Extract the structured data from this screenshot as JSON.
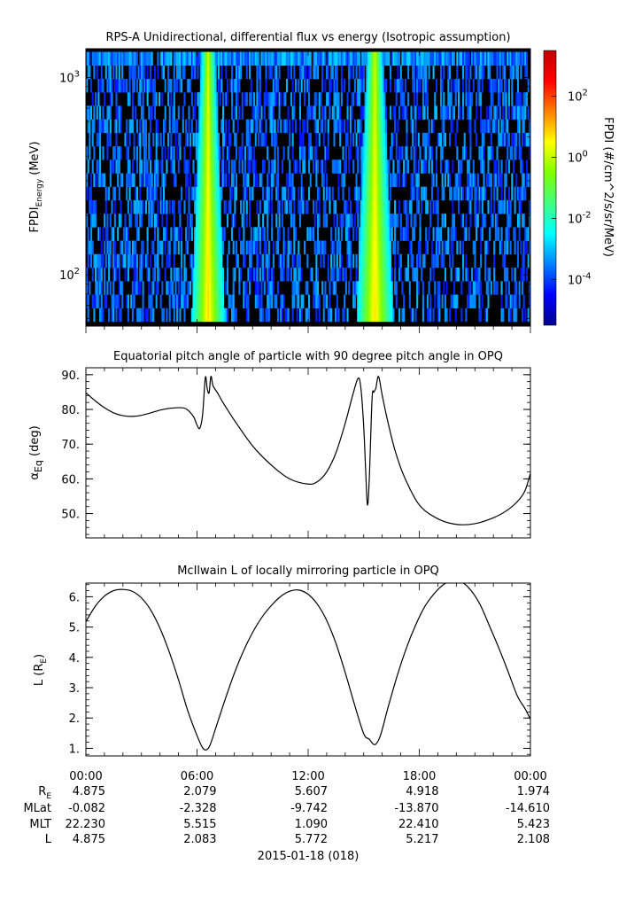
{
  "chart_data": [
    {
      "type": "heatmap",
      "title": "RPS-A Unidirectional, differential flux vs energy (Isotropic assumption)",
      "ylabel_main": "FPDI",
      "ylabel_sub": "Energy",
      "ylabel_unit": " (MeV)",
      "yscale": "log",
      "ylim": [
        55,
        1400
      ],
      "yticks": [
        {
          "value": 100,
          "base": "10",
          "exp": "2"
        },
        {
          "value": 1000,
          "base": "10",
          "exp": "3"
        }
      ],
      "xlim": [
        0,
        24
      ],
      "colorbar": {
        "label": "FPDI (#/cm^2/s/sr/MeV)",
        "scale": "log",
        "range": [
          -5.5,
          3.5
        ],
        "colors": [
          "#00008c",
          "#0000ff",
          "#0080ff",
          "#00ffff",
          "#40ff80",
          "#80ff00",
          "#ffff00",
          "#ff8000",
          "#ff0000",
          "#c00000"
        ],
        "ticks": [
          {
            "exp_value": 2,
            "base": "10",
            "exp": "2"
          },
          {
            "exp_value": 0,
            "base": "10",
            "exp": "0"
          },
          {
            "exp_value": -2,
            "base": "10",
            "exp": "-2"
          },
          {
            "exp_value": -4,
            "base": "10",
            "exp": "-4"
          }
        ]
      },
      "flux_bands": [
        {
          "center_hour": 6.6,
          "width_hours": 0.9,
          "peak_log_flux": 0.8
        },
        {
          "center_hour": 15.6,
          "width_hours": 1.0,
          "peak_log_flux": 0.8
        }
      ],
      "background_log_flux": -3.5
    },
    {
      "type": "line",
      "title": "Equatorial pitch angle of particle with 90 degree pitch angle in OPQ",
      "ylabel_main": "α",
      "ylabel_sub": "Eq",
      "ylabel_unit": " (deg)",
      "ylim": [
        43,
        92
      ],
      "yticks": [
        {
          "value": 50,
          "label": "50."
        },
        {
          "value": 60,
          "label": "60."
        },
        {
          "value": 70,
          "label": "70."
        },
        {
          "value": 80,
          "label": "80."
        },
        {
          "value": 90,
          "label": "90."
        }
      ],
      "xlim": [
        0,
        24
      ],
      "x": [
        0,
        0.5,
        1,
        1.5,
        2,
        2.5,
        3,
        3.5,
        4,
        4.5,
        5,
        5.4,
        5.8,
        6.0,
        6.15,
        6.3,
        6.45,
        6.55,
        6.65,
        6.75,
        6.85,
        6.95,
        7.1,
        7.4,
        8,
        9,
        10,
        11,
        12,
        12.5,
        13,
        13.5,
        14,
        14.4,
        14.7,
        14.85,
        15.0,
        15.1,
        15.2,
        15.3,
        15.45,
        15.55,
        15.65,
        15.8,
        16,
        16.3,
        16.7,
        17.2,
        18,
        19,
        20,
        21,
        22,
        22.7,
        23.3,
        23.7,
        24
      ],
      "values": [
        84.8,
        82.5,
        80.5,
        79.0,
        78.2,
        78.0,
        78.3,
        79.0,
        79.8,
        80.3,
        80.5,
        80.2,
        78.0,
        75.5,
        74.6,
        78.5,
        89.2,
        86.0,
        84.8,
        89.5,
        87.0,
        86.0,
        84.8,
        82.0,
        77.0,
        69.5,
        64.0,
        60.0,
        58.5,
        59.2,
        62.0,
        67.5,
        76.0,
        84.0,
        89.0,
        86.0,
        75.0,
        63.0,
        52.5,
        60.0,
        83.0,
        85.0,
        86.0,
        89.5,
        84.0,
        76.5,
        68.0,
        60.5,
        52.5,
        48.5,
        46.9,
        47.1,
        48.8,
        50.8,
        53.5,
        56.5,
        61.6
      ]
    },
    {
      "type": "line",
      "title": "McIlwain L of locally mirroring particle in OPQ",
      "ylabel_main": "L (R",
      "ylabel_sub": "E",
      "ylabel_unit": ")",
      "ylim": [
        0.75,
        6.45
      ],
      "yticks": [
        {
          "value": 1,
          "label": "1."
        },
        {
          "value": 2,
          "label": "2."
        },
        {
          "value": 3,
          "label": "3."
        },
        {
          "value": 4,
          "label": "4."
        },
        {
          "value": 5,
          "label": "5."
        },
        {
          "value": 6,
          "label": "6."
        }
      ],
      "xlim": [
        0,
        24
      ],
      "x": [
        0,
        0.5,
        1,
        1.5,
        2,
        2.5,
        3,
        3.5,
        4,
        4.5,
        5,
        5.5,
        6,
        6.3,
        6.5,
        6.7,
        7,
        7.5,
        8,
        8.5,
        9,
        9.5,
        10,
        10.5,
        11,
        11.5,
        12,
        12.5,
        13,
        13.5,
        14,
        14.5,
        15,
        15.3,
        15.6,
        15.9,
        16.3,
        16.8,
        17.3,
        17.8,
        18.3,
        18.8,
        19.3,
        19.8,
        20.3,
        20.8,
        21.3,
        21.8,
        22.3,
        22.8,
        23.3,
        23.7,
        24
      ],
      "values": [
        5.18,
        5.68,
        6.02,
        6.2,
        6.24,
        6.18,
        5.96,
        5.56,
        4.96,
        4.18,
        3.26,
        2.24,
        1.42,
        1.02,
        0.95,
        1.1,
        1.65,
        2.58,
        3.45,
        4.2,
        4.82,
        5.32,
        5.7,
        6.0,
        6.18,
        6.22,
        6.08,
        5.75,
        5.22,
        4.46,
        3.5,
        2.45,
        1.48,
        1.3,
        1.12,
        1.42,
        2.32,
        3.38,
        4.3,
        5.06,
        5.68,
        6.1,
        6.4,
        6.52,
        6.48,
        6.2,
        5.72,
        5.02,
        4.3,
        3.52,
        2.72,
        2.32,
        1.96
      ]
    }
  ],
  "x_axis": {
    "tick_labels": [
      "00:00",
      "06:00",
      "12:00",
      "18:00",
      "00:00"
    ],
    "date_label": "2015-01-18 (018)"
  },
  "ephemeris": {
    "rows": [
      {
        "label_main": "R",
        "label_sub": "E",
        "values": [
          "4.875",
          "2.079",
          "5.607",
          "4.918",
          "1.974"
        ]
      },
      {
        "label_main": "MLat",
        "label_sub": "",
        "values": [
          "-0.082",
          "-2.328",
          "-9.742",
          "-13.870",
          "-14.610"
        ]
      },
      {
        "label_main": "MLT",
        "label_sub": "",
        "values": [
          "22.230",
          "5.515",
          "1.090",
          "22.410",
          "5.423"
        ]
      },
      {
        "label_main": "L",
        "label_sub": "",
        "values": [
          "4.875",
          "2.083",
          "5.772",
          "5.217",
          "2.108"
        ]
      }
    ]
  }
}
